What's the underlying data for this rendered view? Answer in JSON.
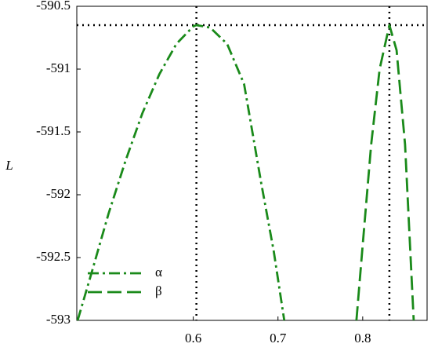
{
  "chart_data": {
    "type": "line",
    "y_label": "L",
    "xlim": [
      0.4625,
      0.876
    ],
    "ylim": [
      -593,
      -590.5
    ],
    "xticks": [
      0.6,
      0.7,
      0.8
    ],
    "yticks": [
      -593,
      -592.5,
      -592,
      -591.5,
      -591,
      -590.5
    ],
    "series": [
      {
        "name": "α",
        "color": "#1a8a1a",
        "dash": "dashdot",
        "x": [
          0.4635,
          0.48,
          0.5,
          0.52,
          0.54,
          0.56,
          0.58,
          0.6,
          0.6037,
          0.62,
          0.64,
          0.66,
          0.68,
          0.695,
          0.7074
        ],
        "values": [
          -593,
          -592.62,
          -592.15,
          -591.73,
          -591.35,
          -591.04,
          -590.8,
          -590.66,
          -590.65,
          -590.67,
          -590.8,
          -591.12,
          -591.9,
          -592.45,
          -593
        ]
      },
      {
        "name": "β",
        "color": "#1a8a1a",
        "dash": "dashed",
        "x": [
          0.7926,
          0.8,
          0.81,
          0.82,
          0.8315,
          0.84,
          0.85,
          0.8602
        ],
        "values": [
          -593,
          -592.4,
          -591.6,
          -591.0,
          -590.65,
          -590.85,
          -591.6,
          -593
        ]
      }
    ],
    "hlines": [
      -590.65
    ],
    "vlines": [
      0.6037,
      0.8315
    ],
    "legend": "lower-left"
  }
}
